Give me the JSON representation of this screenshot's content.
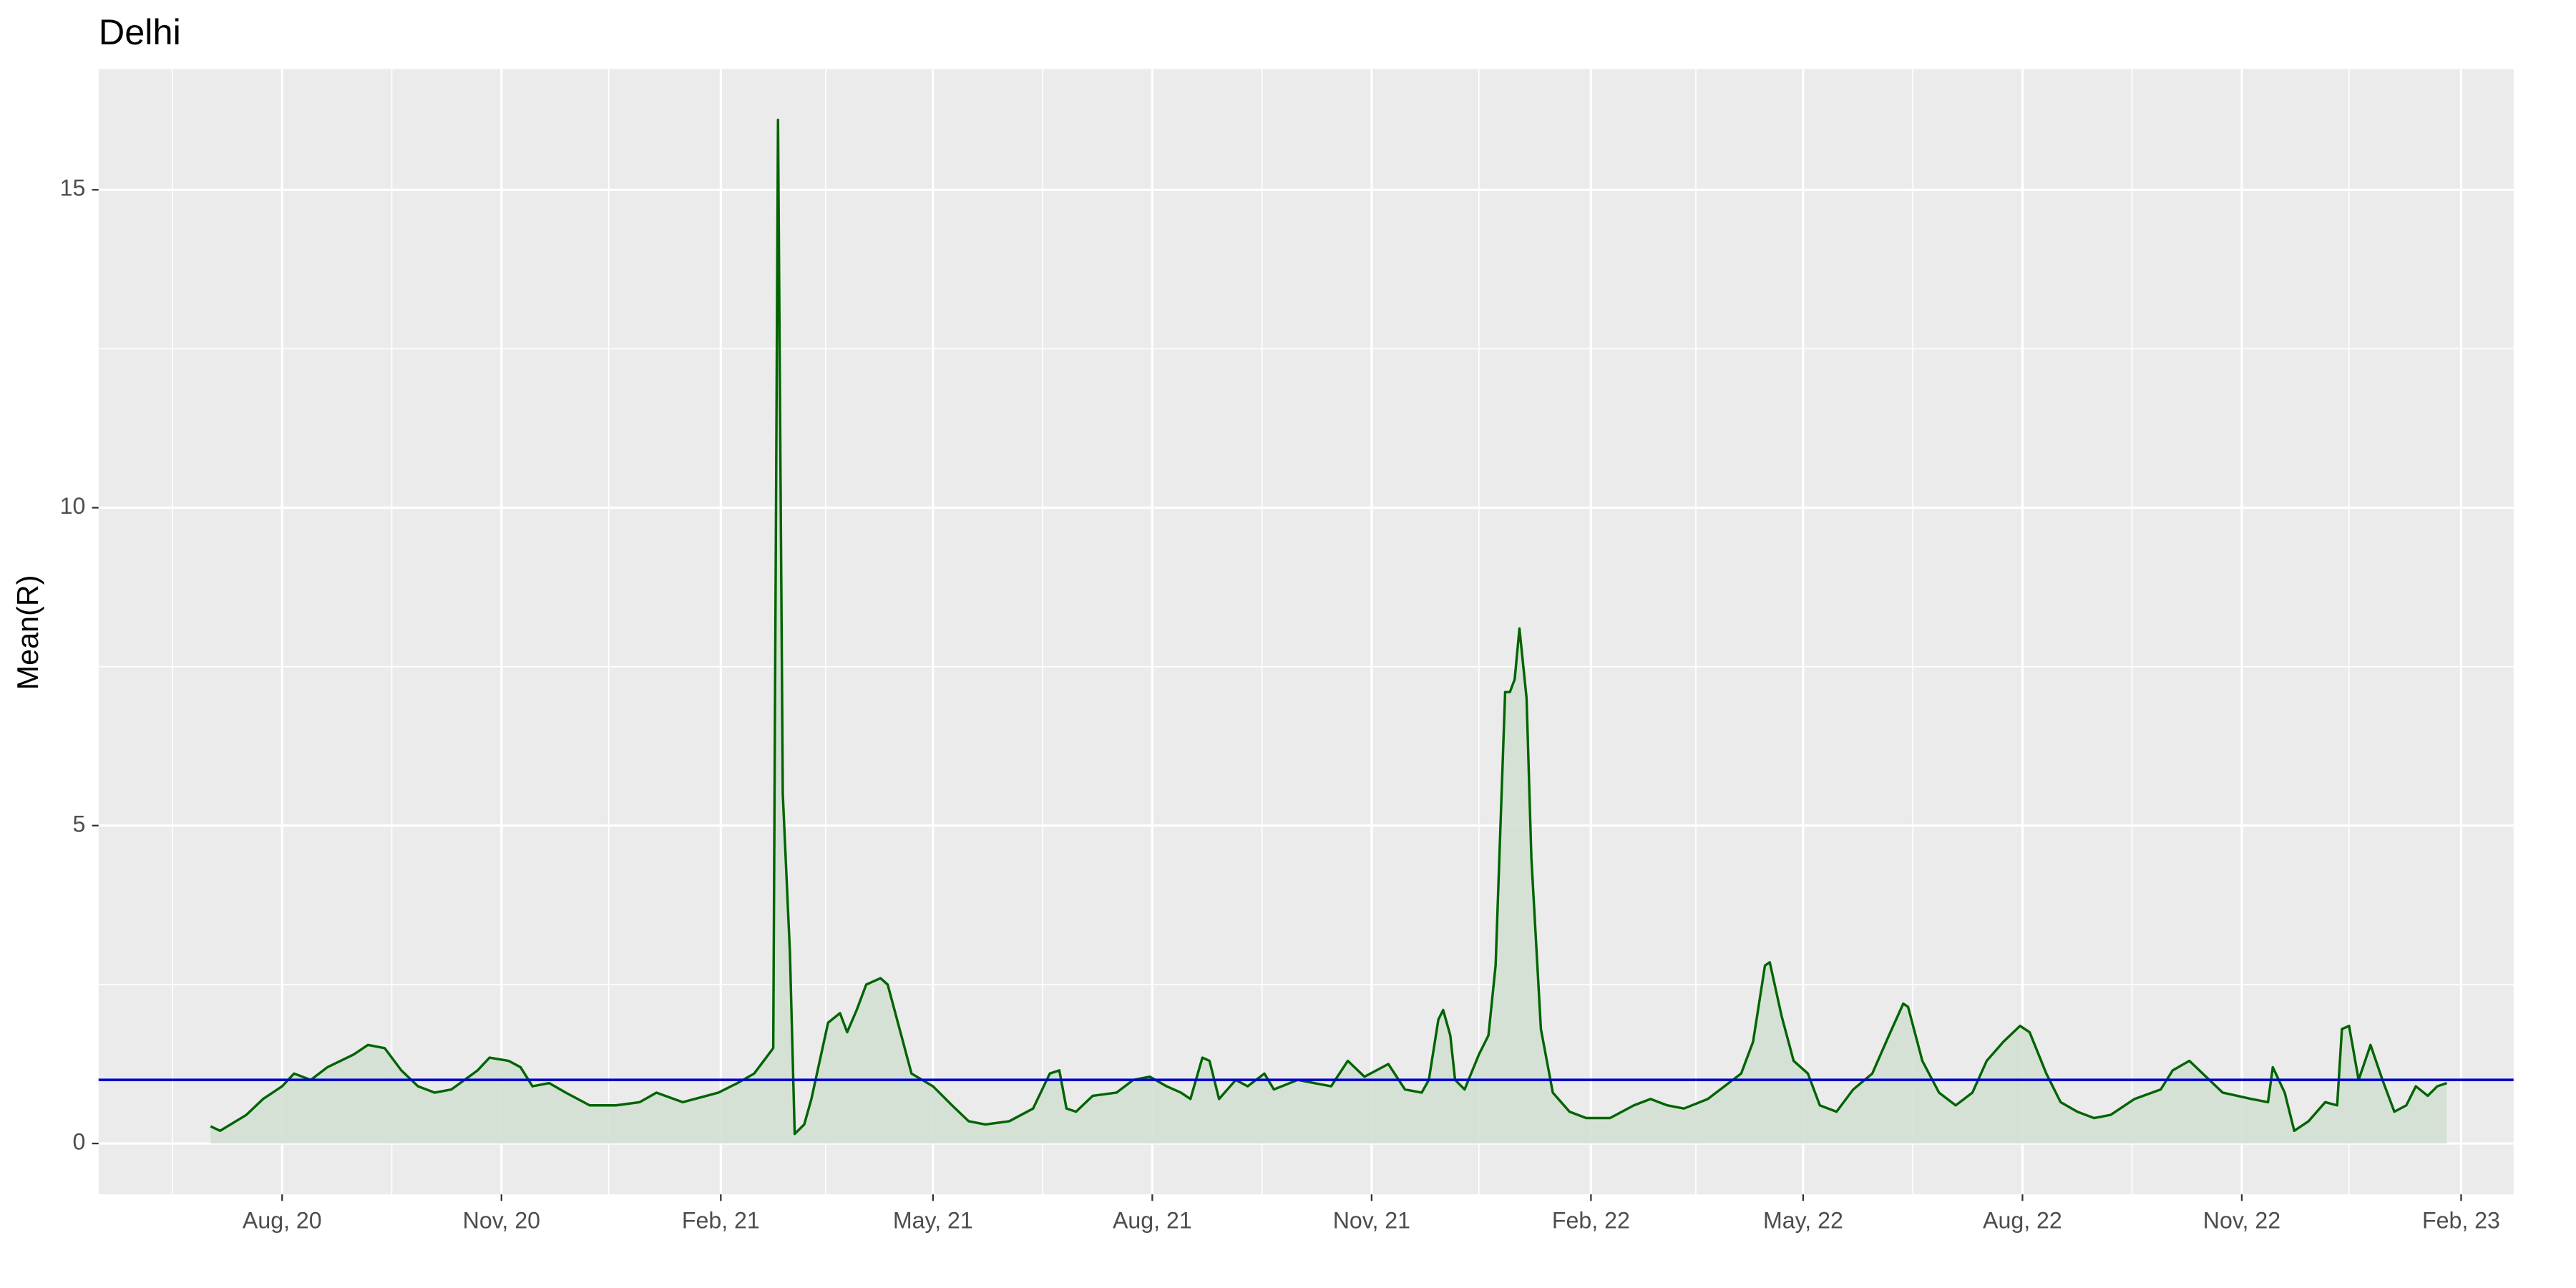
{
  "chart_data": {
    "type": "area",
    "title": "Delhi",
    "ylabel": "Mean(R)",
    "color": "#006400",
    "fill": "#d4e0d4",
    "hline": {
      "value": 1,
      "color": "#0000cd"
    },
    "grid": true,
    "xlim": [
      "2020-05-16",
      "2023-02-23"
    ],
    "xticks": [
      {
        "value": "2020-08-01",
        "label": "Aug, 20"
      },
      {
        "value": "2020-11-01",
        "label": "Nov, 20"
      },
      {
        "value": "2021-02-01",
        "label": "Feb, 21"
      },
      {
        "value": "2021-05-01",
        "label": "May, 21"
      },
      {
        "value": "2021-08-01",
        "label": "Aug, 21"
      },
      {
        "value": "2021-11-01",
        "label": "Nov, 21"
      },
      {
        "value": "2022-02-01",
        "label": "Feb, 22"
      },
      {
        "value": "2022-05-01",
        "label": "May, 22"
      },
      {
        "value": "2022-08-01",
        "label": "Aug, 22"
      },
      {
        "value": "2022-11-01",
        "label": "Nov, 22"
      },
      {
        "value": "2023-02-01",
        "label": "Feb, 23"
      }
    ],
    "xminor": [
      "2020-06-16",
      "2020-09-16",
      "2020-12-16",
      "2021-03-17",
      "2021-06-16",
      "2021-09-16",
      "2021-12-16",
      "2022-03-17",
      "2022-06-16",
      "2022-09-16",
      "2022-12-16"
    ],
    "ylim": [
      -0.8,
      16.9
    ],
    "yticks": [
      0,
      5,
      10,
      15
    ],
    "yminor": [
      2.5,
      7.5,
      12.5
    ],
    "x": [
      "2020-07-02",
      "2020-07-06",
      "2020-07-17",
      "2020-07-24",
      "2020-08-01",
      "2020-08-06",
      "2020-08-13",
      "2020-08-20",
      "2020-08-31",
      "2020-09-06",
      "2020-09-13",
      "2020-09-20",
      "2020-09-27",
      "2020-10-04",
      "2020-10-11",
      "2020-10-22",
      "2020-10-27",
      "2020-11-04",
      "2020-11-09",
      "2020-11-14",
      "2020-11-21",
      "2020-11-28",
      "2020-12-08",
      "2020-12-19",
      "2020-12-29",
      "2021-01-05",
      "2021-01-16",
      "2021-01-26",
      "2021-01-31",
      "2021-02-08",
      "2021-02-15",
      "2021-02-21",
      "2021-02-23",
      "2021-02-25",
      "2021-02-27",
      "2021-03-02",
      "2021-03-04",
      "2021-03-08",
      "2021-03-11",
      "2021-03-18",
      "2021-03-23",
      "2021-03-26",
      "2021-03-30",
      "2021-04-03",
      "2021-04-09",
      "2021-04-12",
      "2021-04-17",
      "2021-04-22",
      "2021-05-01",
      "2021-05-09",
      "2021-05-16",
      "2021-05-23",
      "2021-06-02",
      "2021-06-12",
      "2021-06-19",
      "2021-06-23",
      "2021-06-26",
      "2021-06-30",
      "2021-07-07",
      "2021-07-17",
      "2021-07-24",
      "2021-07-31",
      "2021-08-07",
      "2021-08-13",
      "2021-08-17",
      "2021-08-22",
      "2021-08-25",
      "2021-08-29",
      "2021-09-05",
      "2021-09-10",
      "2021-09-17",
      "2021-09-21",
      "2021-10-01",
      "2021-10-08",
      "2021-10-15",
      "2021-10-22",
      "2021-10-29",
      "2021-11-08",
      "2021-11-15",
      "2021-11-22",
      "2021-11-25",
      "2021-11-29",
      "2021-12-01",
      "2021-12-04",
      "2021-12-06",
      "2021-12-10",
      "2021-12-16",
      "2021-12-20",
      "2021-12-23",
      "2021-12-27",
      "2021-12-29",
      "2021-12-31",
      "2022-01-02",
      "2022-01-05",
      "2022-01-07",
      "2022-01-11",
      "2022-01-16",
      "2022-01-23",
      "2022-01-30",
      "2022-02-09",
      "2022-02-19",
      "2022-02-26",
      "2022-03-05",
      "2022-03-12",
      "2022-03-22",
      "2022-03-29",
      "2022-04-05",
      "2022-04-10",
      "2022-04-15",
      "2022-04-17",
      "2022-04-22",
      "2022-04-27",
      "2022-05-03",
      "2022-05-08",
      "2022-05-15",
      "2022-05-22",
      "2022-05-30",
      "2022-06-06",
      "2022-06-12",
      "2022-06-14",
      "2022-06-20",
      "2022-06-27",
      "2022-07-04",
      "2022-07-11",
      "2022-07-17",
      "2022-07-24",
      "2022-07-31",
      "2022-08-04",
      "2022-08-11",
      "2022-08-17",
      "2022-08-24",
      "2022-08-31",
      "2022-09-07",
      "2022-09-17",
      "2022-09-28",
      "2022-10-03",
      "2022-10-10",
      "2022-10-17",
      "2022-10-24",
      "2022-11-05",
      "2022-11-12",
      "2022-11-14",
      "2022-11-19",
      "2022-11-23",
      "2022-11-29",
      "2022-12-06",
      "2022-12-11",
      "2022-12-13",
      "2022-12-16",
      "2022-12-20",
      "2022-12-25",
      "2022-12-30",
      "2023-01-04",
      "2023-01-09",
      "2023-01-13",
      "2023-01-18",
      "2023-01-22",
      "2023-01-26"
    ],
    "values": [
      0.27,
      0.2,
      0.45,
      0.7,
      0.9,
      1.1,
      1.0,
      1.2,
      1.4,
      1.55,
      1.5,
      1.15,
      0.9,
      0.8,
      0.85,
      1.15,
      1.35,
      1.3,
      1.2,
      0.9,
      0.95,
      0.8,
      0.6,
      0.6,
      0.65,
      0.8,
      0.65,
      0.75,
      0.8,
      0.95,
      1.1,
      1.4,
      1.5,
      16.1,
      5.5,
      3.0,
      0.15,
      0.3,
      0.7,
      1.9,
      2.05,
      1.75,
      2.1,
      2.5,
      2.6,
      2.5,
      1.8,
      1.1,
      0.9,
      0.6,
      0.35,
      0.3,
      0.35,
      0.55,
      1.1,
      1.15,
      0.55,
      0.5,
      0.75,
      0.8,
      1.0,
      1.05,
      0.9,
      0.8,
      0.7,
      1.35,
      1.3,
      0.7,
      1.0,
      0.9,
      1.1,
      0.85,
      1.0,
      0.95,
      0.9,
      1.3,
      1.05,
      1.25,
      0.85,
      0.8,
      1.0,
      1.95,
      2.1,
      1.7,
      1.0,
      0.85,
      1.4,
      1.7,
      2.8,
      7.1,
      7.1,
      7.3,
      8.1,
      7.0,
      4.5,
      1.8,
      0.8,
      0.5,
      0.4,
      0.4,
      0.6,
      0.7,
      0.6,
      0.55,
      0.7,
      0.9,
      1.1,
      1.6,
      2.8,
      2.85,
      2.0,
      1.3,
      1.1,
      0.6,
      0.5,
      0.85,
      1.1,
      1.7,
      2.2,
      2.15,
      1.3,
      0.8,
      0.6,
      0.8,
      1.3,
      1.6,
      1.85,
      1.75,
      1.1,
      0.65,
      0.5,
      0.4,
      0.45,
      0.7,
      0.85,
      1.15,
      1.3,
      1.05,
      0.8,
      0.7,
      0.65,
      1.2,
      0.8,
      0.2,
      0.35,
      0.65,
      0.6,
      1.8,
      1.85,
      1.0,
      1.55,
      1.0,
      0.5,
      0.6,
      0.9,
      0.75,
      0.9,
      0.95
    ]
  }
}
